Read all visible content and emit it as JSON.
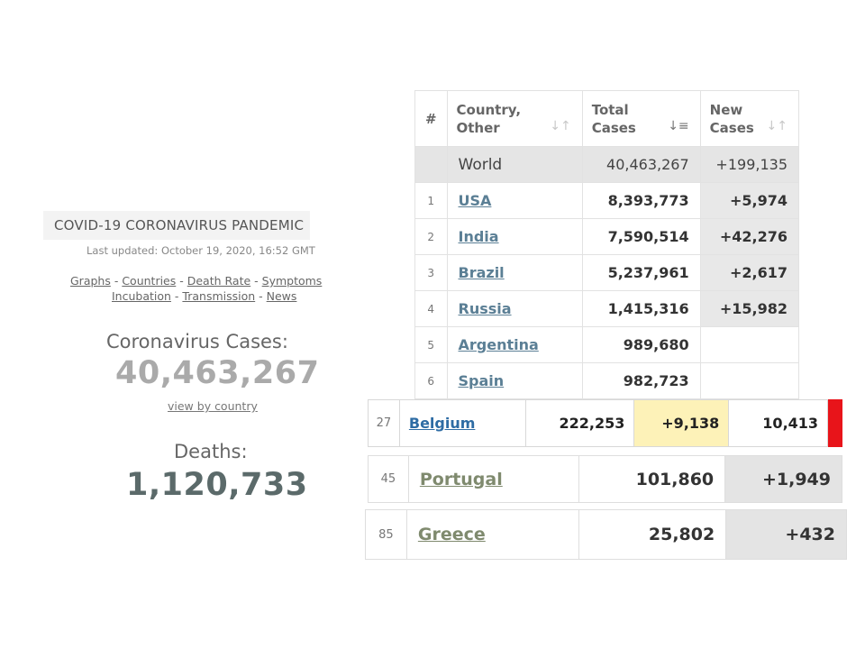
{
  "summary": {
    "banner": "COVID-19 CORONAVIRUS PANDEMIC",
    "last_updated": "Last updated: October 19, 2020, 16:52 GMT",
    "nav_links": [
      "Graphs",
      "Countries",
      "Death Rate",
      "Symptoms",
      "Incubation",
      "Transmission",
      "News"
    ],
    "nav_separator": " - ",
    "cases_label": "Coronavirus Cases:",
    "cases_value": "40,463,267",
    "view_link": "view by country",
    "deaths_label": "Deaths:",
    "deaths_value": "1,120,733"
  },
  "table": {
    "headers": {
      "rank": "#",
      "country": "Country, Other",
      "total_cases": "Total Cases",
      "new_cases": "New Cases"
    },
    "sort_icons": {
      "country": "sort-icon",
      "total_cases": "sort-desc-active-icon",
      "new_cases": "sort-icon"
    },
    "world": {
      "name": "World",
      "total_cases": "40,463,267",
      "new_cases": "+199,135"
    },
    "rows": [
      {
        "rank": "1",
        "country": "USA",
        "total_cases": "8,393,773",
        "new_cases": "+5,974"
      },
      {
        "rank": "2",
        "country": "India",
        "total_cases": "7,590,514",
        "new_cases": "+42,276"
      },
      {
        "rank": "3",
        "country": "Brazil",
        "total_cases": "5,237,961",
        "new_cases": "+2,617"
      },
      {
        "rank": "4",
        "country": "Russia",
        "total_cases": "1,415,316",
        "new_cases": "+15,982"
      },
      {
        "rank": "5",
        "country": "Argentina",
        "total_cases": "989,680",
        "new_cases": ""
      },
      {
        "rank": "6",
        "country": "Spain",
        "total_cases": "982,723",
        "new_cases": ""
      }
    ]
  },
  "highlight_rows": {
    "belgium": {
      "rank": "27",
      "country": "Belgium",
      "total_cases": "222,253",
      "new_cases": "+9,138",
      "total_deaths": "10,413"
    },
    "portugal": {
      "rank": "45",
      "country": "Portugal",
      "total_cases": "101,860",
      "new_cases": "+1,949"
    },
    "greece": {
      "rank": "85",
      "country": "Greece",
      "total_cases": "25,802",
      "new_cases": "+432"
    }
  },
  "colors": {
    "link_blue": "#2e6ca4",
    "link_muted": "#5b7f95",
    "highlight_yellow": "#fdf2b8",
    "alert_red": "#e8141a",
    "new_cases_gray": "#e8e8e8"
  }
}
